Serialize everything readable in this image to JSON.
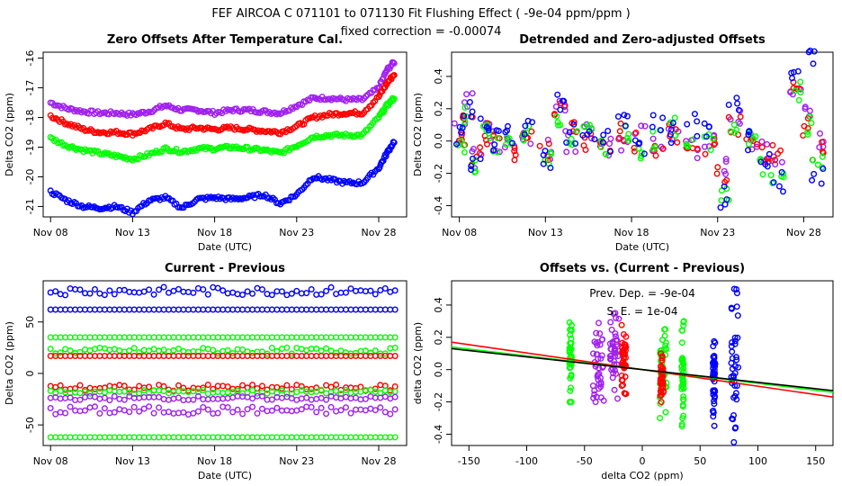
{
  "figure": {
    "title_line1": "FEF   AIRCOA C   071101 to 071130   Fit Flushing Effect ( -9e-04 ppm/ppm )",
    "title_line2": "fixed correction = -0.00074"
  },
  "colors": {
    "purple": "#a020f0",
    "red": "#ff0000",
    "green": "#00ff00",
    "blue": "#0000ff",
    "black": "#000000"
  },
  "chart_data": [
    {
      "id": "zero_offsets",
      "type": "scatter",
      "title": "Zero Offsets After Temperature Cal.",
      "xlabel": "Date (UTC)",
      "ylabel": "Delta CO2 (ppm)",
      "xlim": [
        7.55,
        29.7
      ],
      "ylim": [
        -21.35,
        -15.8
      ],
      "x_ticks": [
        8,
        13,
        18,
        23,
        28
      ],
      "x_tick_labels": [
        "Nov 08",
        "Nov 13",
        "Nov 18",
        "Nov 23",
        "Nov 28"
      ],
      "y_ticks": [
        -21,
        -20,
        -19,
        -18,
        -17,
        -16
      ],
      "y_tick_labels": [
        "-21",
        "-20",
        "-19",
        "-18",
        "-17",
        "-16"
      ],
      "series": [
        {
          "name": "purple",
          "color": "#a020f0",
          "x": [
            8,
            9,
            10,
            11,
            12,
            13,
            14,
            15,
            16,
            17,
            18,
            19,
            20,
            21,
            22,
            23,
            24,
            25,
            26,
            27,
            28,
            28.5,
            29
          ],
          "y": [
            -17.5,
            -17.7,
            -17.8,
            -17.85,
            -17.85,
            -17.9,
            -17.8,
            -17.6,
            -17.75,
            -17.75,
            -17.85,
            -17.75,
            -17.75,
            -17.8,
            -17.85,
            -17.6,
            -17.35,
            -17.35,
            -17.4,
            -17.4,
            -17.0,
            -16.4,
            -16.1
          ]
        },
        {
          "name": "red",
          "color": "#ff0000",
          "x": [
            8,
            9,
            10,
            11,
            12,
            13,
            14,
            15,
            16,
            17,
            18,
            19,
            20,
            21,
            22,
            23,
            24,
            25,
            26,
            27,
            28,
            28.5,
            29
          ],
          "y": [
            -17.95,
            -18.2,
            -18.4,
            -18.5,
            -18.5,
            -18.55,
            -18.4,
            -18.2,
            -18.4,
            -18.35,
            -18.4,
            -18.35,
            -18.4,
            -18.45,
            -18.5,
            -18.3,
            -18.0,
            -17.9,
            -17.85,
            -17.85,
            -17.3,
            -16.85,
            -16.5
          ]
        },
        {
          "name": "green",
          "color": "#00ff00",
          "x": [
            8,
            9,
            10,
            11,
            12,
            13,
            14,
            15,
            16,
            17,
            18,
            19,
            20,
            21,
            22,
            23,
            24,
            25,
            26,
            27,
            28,
            28.5,
            29
          ],
          "y": [
            -18.7,
            -18.95,
            -19.1,
            -19.2,
            -19.3,
            -19.4,
            -19.25,
            -19.05,
            -19.15,
            -19.05,
            -19.05,
            -19.0,
            -19.05,
            -19.1,
            -19.2,
            -18.95,
            -18.65,
            -18.6,
            -18.6,
            -18.6,
            -18.0,
            -17.6,
            -17.3
          ]
        },
        {
          "name": "blue",
          "color": "#0000ff",
          "x": [
            8,
            9,
            10,
            11,
            12,
            13,
            14,
            15,
            16,
            17,
            18,
            19,
            20,
            21,
            22,
            23,
            24,
            25,
            26,
            27,
            28,
            28.5,
            29
          ],
          "y": [
            -20.5,
            -20.8,
            -21.0,
            -21.05,
            -21.0,
            -21.2,
            -20.8,
            -20.7,
            -21.05,
            -20.75,
            -20.7,
            -20.75,
            -20.7,
            -20.6,
            -20.9,
            -20.6,
            -20.0,
            -20.1,
            -20.2,
            -20.2,
            -19.7,
            -19.2,
            -18.75
          ]
        }
      ]
    },
    {
      "id": "detrended",
      "type": "scatter",
      "title": "Detrended and Zero-adjusted Offsets",
      "xlabel": "Date (UTC)",
      "ylabel": "Delta CO2 (ppm)",
      "xlim": [
        7.55,
        29.7
      ],
      "ylim": [
        -0.47,
        0.55
      ],
      "x_ticks": [
        8,
        13,
        18,
        23,
        28
      ],
      "x_tick_labels": [
        "Nov 08",
        "Nov 13",
        "Nov 18",
        "Nov 23",
        "Nov 28"
      ],
      "y_ticks": [
        -0.4,
        -0.2,
        0.0,
        0.2,
        0.4
      ],
      "y_tick_labels": [
        "-0.4",
        "-0.2",
        "0.0",
        "0.2",
        "0.4"
      ],
      "series": [
        {
          "name": "purple",
          "color": "#a020f0",
          "x": [
            8,
            8.5,
            9,
            9.5,
            10,
            11,
            12,
            13,
            13.8,
            14.5,
            15.5,
            16.5,
            17.5,
            18.5,
            19.5,
            20.5,
            21.5,
            22.5,
            23.3,
            24,
            25,
            25.8,
            26.5,
            27.5,
            28.3,
            28.8
          ],
          "y": [
            0.05,
            0.25,
            -0.1,
            0.05,
            0.0,
            -0.05,
            0.05,
            -0.05,
            0.2,
            0.0,
            0.05,
            -0.05,
            0.0,
            0.05,
            0.0,
            0.05,
            -0.05,
            0.0,
            -0.15,
            0.15,
            0.0,
            -0.05,
            -0.1,
            0.35,
            0.15,
            0.0
          ]
        },
        {
          "name": "red",
          "color": "#ff0000",
          "x": [
            8,
            8.5,
            9,
            9.5,
            10,
            11,
            12,
            13,
            13.8,
            14.5,
            15.5,
            16.5,
            17.5,
            18.5,
            19.5,
            20.5,
            21.5,
            22.5,
            23.3,
            24,
            25,
            25.8,
            26.5,
            27.5,
            28.3,
            28.8
          ],
          "y": [
            0.0,
            0.2,
            -0.1,
            0.05,
            0.0,
            -0.05,
            0.0,
            -0.05,
            0.2,
            0.05,
            0.0,
            -0.05,
            0.05,
            0.0,
            -0.05,
            0.05,
            0.0,
            -0.05,
            -0.2,
            0.1,
            0.05,
            -0.1,
            -0.05,
            0.3,
            0.1,
            -0.05
          ]
        },
        {
          "name": "green",
          "color": "#00ff00",
          "x": [
            8,
            8.5,
            9,
            9.5,
            10,
            11,
            12,
            13,
            13.8,
            14.5,
            15.5,
            16.5,
            17.5,
            18.5,
            19.5,
            20.5,
            21.5,
            22.5,
            23.3,
            24,
            25,
            25.8,
            26.5,
            27.5,
            28.3,
            28.8
          ],
          "y": [
            0.0,
            0.15,
            -0.15,
            0.1,
            -0.05,
            0.0,
            0.05,
            -0.1,
            0.15,
            0.0,
            0.1,
            -0.05,
            0.05,
            -0.05,
            0.0,
            0.1,
            -0.05,
            0.0,
            -0.3,
            0.1,
            0.05,
            -0.15,
            -0.2,
            0.3,
            0.1,
            -0.15
          ]
        },
        {
          "name": "blue",
          "color": "#0000ff",
          "x": [
            8,
            8.5,
            9,
            9.5,
            10,
            11,
            12,
            13,
            13.8,
            14.5,
            15.5,
            16.5,
            17.5,
            18.5,
            19.5,
            20.5,
            21.5,
            22.5,
            23.3,
            24,
            25,
            25.8,
            26.5,
            27.5,
            28.3,
            28.8
          ],
          "y": [
            0.05,
            0.2,
            -0.15,
            0.1,
            0.0,
            0.05,
            0.1,
            -0.1,
            0.25,
            0.05,
            0.05,
            0.0,
            0.1,
            -0.05,
            0.1,
            0.05,
            0.1,
            0.05,
            -0.35,
            0.25,
            0.0,
            -0.1,
            -0.25,
            0.4,
            0.5,
            -0.2
          ]
        }
      ]
    },
    {
      "id": "current_minus_previous",
      "type": "scatter",
      "title": "Current - Previous",
      "xlabel": "Date (UTC)",
      "ylabel": "Delta CO2 (ppm)",
      "xlim": [
        7.55,
        29.7
      ],
      "ylim": [
        -70,
        90
      ],
      "x_ticks": [
        8,
        13,
        18,
        23,
        28
      ],
      "x_tick_labels": [
        "Nov 08",
        "Nov 13",
        "Nov 18",
        "Nov 23",
        "Nov 28"
      ],
      "y_ticks": [
        -50,
        0,
        50
      ],
      "y_tick_labels": [
        "-50",
        "0",
        "50"
      ],
      "series": [
        {
          "name": "blue_high",
          "color": "#0000ff",
          "x_range": [
            8,
            29
          ],
          "level": 80,
          "spread": 4
        },
        {
          "name": "blue_line",
          "color": "#0000ff",
          "x_range": [
            8,
            29
          ],
          "level": 62,
          "spread": 0
        },
        {
          "name": "green_high",
          "color": "#00ff00",
          "x_range": [
            8,
            29
          ],
          "level": 35,
          "spread": 0
        },
        {
          "name": "green_mid",
          "color": "#00ff00",
          "x_range": [
            8,
            29
          ],
          "level": 22,
          "spread": 3
        },
        {
          "name": "red_line",
          "color": "#ff0000",
          "x_range": [
            8,
            29
          ],
          "level": 17,
          "spread": 0
        },
        {
          "name": "red_low",
          "color": "#ff0000",
          "x_range": [
            8,
            29
          ],
          "level": -14,
          "spread": 3
        },
        {
          "name": "green_low",
          "color": "#00ff00",
          "x_range": [
            8,
            29
          ],
          "level": -18,
          "spread": 2
        },
        {
          "name": "purple_a",
          "color": "#a020f0",
          "x_range": [
            8,
            29
          ],
          "level": -24,
          "spread": 2
        },
        {
          "name": "purple_b",
          "color": "#a020f0",
          "x_range": [
            8,
            29
          ],
          "level": -36,
          "spread": 4
        },
        {
          "name": "green_bottom",
          "color": "#00ff00",
          "x_range": [
            8,
            29
          ],
          "level": -62,
          "spread": 0
        }
      ]
    },
    {
      "id": "offsets_vs_diff",
      "type": "scatter",
      "title": "Offsets vs. (Current - Previous)",
      "xlabel": "delta CO2 (ppm)",
      "ylabel": "delta CO2 (ppm)",
      "xlim": [
        -165,
        165
      ],
      "ylim": [
        -0.47,
        0.55
      ],
      "x_ticks": [
        -150,
        -100,
        -50,
        0,
        50,
        100,
        150
      ],
      "x_tick_labels": [
        "-150",
        "-100",
        "-50",
        "0",
        "50",
        "100",
        "150"
      ],
      "y_ticks": [
        -0.4,
        -0.2,
        0.0,
        0.2,
        0.4
      ],
      "y_tick_labels": [
        "-0.4",
        "-0.2",
        "0.0",
        "0.2",
        "0.4"
      ],
      "annotation_slope": "Prev. Dep. =  -9e-04",
      "annotation_se": "S. E. =  1e-04",
      "clusters": [
        {
          "color": "#00ff00",
          "x": -62,
          "width": 2,
          "ymin": -0.2,
          "ymax": 0.35
        },
        {
          "color": "#a020f0",
          "x": -38,
          "width": 10,
          "ymin": -0.25,
          "ymax": 0.3
        },
        {
          "color": "#a020f0",
          "x": -24,
          "width": 8,
          "ymin": -0.2,
          "ymax": 0.35
        },
        {
          "color": "#ff0000",
          "x": -16,
          "width": 4,
          "ymin": -0.15,
          "ymax": 0.3
        },
        {
          "color": "#00ff00",
          "x": 18,
          "width": 6,
          "ymin": -0.3,
          "ymax": 0.25
        },
        {
          "color": "#ff0000",
          "x": 17,
          "width": 3,
          "ymin": -0.2,
          "ymax": 0.1
        },
        {
          "color": "#00ff00",
          "x": 35,
          "width": 2,
          "ymin": -0.35,
          "ymax": 0.3
        },
        {
          "color": "#0000ff",
          "x": 62,
          "width": 2,
          "ymin": -0.35,
          "ymax": 0.25
        },
        {
          "color": "#0000ff",
          "x": 80,
          "width": 6,
          "ymin": -0.45,
          "ymax": 0.5
        }
      ],
      "fit_lines": [
        {
          "color": "#ff0000",
          "x": [
            -165,
            165
          ],
          "y": [
            0.17,
            -0.17
          ]
        },
        {
          "color": "#00ff00",
          "x": [
            -165,
            165
          ],
          "y": [
            0.14,
            -0.14
          ]
        },
        {
          "color": "#000000",
          "x": [
            -165,
            165
          ],
          "y": [
            0.13,
            -0.13
          ]
        }
      ]
    }
  ]
}
